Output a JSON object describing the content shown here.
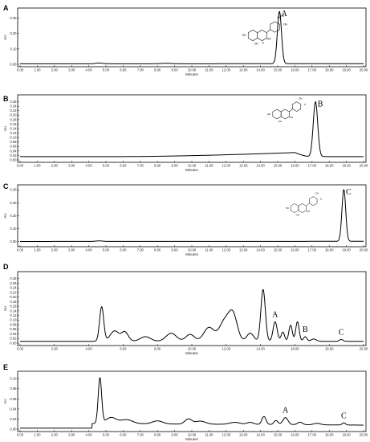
{
  "chart_data": [
    {
      "panel": "A",
      "type": "line",
      "xlabel": "Minutes",
      "ylabel": "AU",
      "xlim": [
        0,
        20
      ],
      "ylim": [
        0,
        0.35
      ],
      "x_ticks": [
        "0.00",
        "1.00",
        "2.00",
        "3.00",
        "4.00",
        "5.00",
        "6.00",
        "7.00",
        "8.00",
        "9.00",
        "10.00",
        "11.00",
        "12.00",
        "13.00",
        "14.00",
        "15.00",
        "16.00",
        "17.00",
        "18.00",
        "19.00",
        "20.00"
      ],
      "y_ticks": [
        "0.00",
        "0.10",
        "0.20",
        "0.30"
      ],
      "peaks": [
        {
          "label": "A",
          "rt": 15.1,
          "height": 0.34,
          "width": 0.12
        },
        {
          "label": "",
          "rt": 4.6,
          "height": 0.005,
          "width": 0.2
        },
        {
          "label": "",
          "rt": 8.5,
          "height": 0.003,
          "width": 0.3
        }
      ],
      "baseline": [
        0.003,
        0.004
      ],
      "structure": {
        "substituents": [
          "OH",
          "HO",
          "OH",
          "OH",
          "OH",
          "OH",
          "O"
        ]
      }
    },
    {
      "panel": "B",
      "type": "line",
      "xlabel": "Minutes",
      "ylabel": "AU",
      "xlim": [
        0,
        20
      ],
      "ylim": [
        0,
        0.28
      ],
      "x_ticks": [
        "0.00",
        "1.00",
        "2.00",
        "3.00",
        "4.00",
        "5.00",
        "6.00",
        "7.00",
        "8.00",
        "9.00",
        "10.00",
        "11.00",
        "12.00",
        "13.00",
        "14.00",
        "15.00",
        "16.00",
        "17.00",
        "18.00",
        "19.00",
        "20.00"
      ],
      "y_ticks": [
        "0.00",
        "0.02",
        "0.04",
        "0.06",
        "0.08",
        "0.10",
        "0.12",
        "0.14",
        "0.16",
        "0.18",
        "0.20",
        "0.22",
        "0.24",
        "0.26"
      ],
      "peaks": [
        {
          "label": "B",
          "rt": 17.2,
          "height": 0.245,
          "width": 0.13
        }
      ],
      "baseline": [
        0.015,
        0.015
      ],
      "baseline_hump": {
        "start": 6,
        "peak": 16,
        "end": 16.9,
        "height": 0.018
      },
      "structure": {
        "substituents": [
          "OH",
          "HO",
          "OH",
          "OH",
          "O"
        ]
      }
    },
    {
      "panel": "C",
      "type": "line",
      "xlabel": "Minutes",
      "ylabel": "AU",
      "xlim": [
        0,
        20
      ],
      "ylim": [
        -0.02,
        0.42
      ],
      "x_ticks": [
        "0.00",
        "1.00",
        "2.00",
        "3.00",
        "4.00",
        "5.00",
        "6.00",
        "7.00",
        "8.00",
        "9.00",
        "10.00",
        "11.00",
        "12.00",
        "13.00",
        "14.00",
        "15.00",
        "16.00",
        "17.00",
        "18.00",
        "19.00",
        "20.00"
      ],
      "y_ticks": [
        "0.00",
        "0.10",
        "0.20",
        "0.30",
        "0.40"
      ],
      "peaks": [
        {
          "label": "C",
          "rt": 18.85,
          "height": 0.4,
          "width": 0.11
        },
        {
          "label": "",
          "rt": 4.6,
          "height": 0.004,
          "width": 0.2
        }
      ],
      "baseline": [
        0.002,
        0.003
      ],
      "structure": {
        "substituents": [
          "OH",
          "HO",
          "OH",
          "OH",
          "O"
        ]
      }
    },
    {
      "panel": "D",
      "type": "line",
      "xlabel": "Minutes",
      "ylabel": "AU",
      "xlim": [
        0,
        20
      ],
      "ylim": [
        0,
        0.3
      ],
      "x_ticks": [
        "0.00",
        "2.00",
        "4.00",
        "6.00",
        "8.00",
        "10.00",
        "12.00",
        "14.00",
        "16.00",
        "18.00",
        "20.00"
      ],
      "y_ticks": [
        "0.00",
        "0.02",
        "0.04",
        "0.06",
        "0.08",
        "0.10",
        "0.12",
        "0.14",
        "0.16",
        "0.18",
        "0.20",
        "0.22",
        "0.24",
        "0.26",
        "0.28"
      ],
      "peaks": [
        {
          "label": "",
          "rt": 4.75,
          "height": 0.15,
          "width": 0.12
        },
        {
          "label": "",
          "rt": 5.5,
          "height": 0.045,
          "width": 0.25
        },
        {
          "label": "",
          "rt": 6.1,
          "height": 0.04,
          "width": 0.2
        },
        {
          "label": "",
          "rt": 7.3,
          "height": 0.02,
          "width": 0.3
        },
        {
          "label": "",
          "rt": 8.8,
          "height": 0.035,
          "width": 0.3
        },
        {
          "label": "",
          "rt": 9.9,
          "height": 0.03,
          "width": 0.25
        },
        {
          "label": "",
          "rt": 11.0,
          "height": 0.06,
          "width": 0.3
        },
        {
          "label": "",
          "rt": 11.9,
          "height": 0.085,
          "width": 0.3
        },
        {
          "label": "",
          "rt": 12.4,
          "height": 0.11,
          "width": 0.25
        },
        {
          "label": "",
          "rt": 13.4,
          "height": 0.035,
          "width": 0.2
        },
        {
          "label": "",
          "rt": 14.15,
          "height": 0.225,
          "width": 0.13
        },
        {
          "label": "A",
          "rt": 14.85,
          "height": 0.085,
          "width": 0.12
        },
        {
          "label": "",
          "rt": 15.3,
          "height": 0.04,
          "width": 0.1
        },
        {
          "label": "",
          "rt": 15.75,
          "height": 0.07,
          "width": 0.1
        },
        {
          "label": "",
          "rt": 16.15,
          "height": 0.085,
          "width": 0.1
        },
        {
          "label": "B",
          "rt": 16.6,
          "height": 0.02,
          "width": 0.1
        },
        {
          "label": "",
          "rt": 17.1,
          "height": 0.01,
          "width": 0.15
        },
        {
          "label": "C",
          "rt": 18.7,
          "height": 0.008,
          "width": 0.1
        }
      ],
      "baseline": [
        0.008,
        0.008
      ],
      "pre_offset": {
        "start": 0,
        "end": 4.4,
        "level": 0.008
      }
    },
    {
      "panel": "E",
      "type": "line",
      "xlabel": "Minutes",
      "ylabel": "AU",
      "xlim": [
        0,
        20
      ],
      "ylim": [
        0,
        0.11
      ],
      "x_ticks": [
        "0.00",
        "1.00",
        "2.00",
        "3.00",
        "4.00",
        "5.00",
        "6.00",
        "7.00",
        "8.00",
        "9.00",
        "10.00",
        "11.00",
        "12.00",
        "13.00",
        "14.00",
        "15.00",
        "16.00",
        "17.00",
        "18.00",
        "19.00",
        "20.00"
      ],
      "y_ticks": [
        "0.00",
        "0.02",
        "0.04",
        "0.06",
        "0.08",
        "0.10"
      ],
      "peaks": [
        {
          "label": "",
          "rt": 4.65,
          "height": 0.09,
          "width": 0.1
        },
        {
          "label": "",
          "rt": 5.3,
          "height": 0.012,
          "width": 0.3
        },
        {
          "label": "",
          "rt": 6.2,
          "height": 0.008,
          "width": 0.35
        },
        {
          "label": "",
          "rt": 8.0,
          "height": 0.006,
          "width": 0.3
        },
        {
          "label": "",
          "rt": 9.8,
          "height": 0.01,
          "width": 0.2
        },
        {
          "label": "",
          "rt": 10.5,
          "height": 0.006,
          "width": 0.3
        },
        {
          "label": "",
          "rt": 12.5,
          "height": 0.004,
          "width": 0.3
        },
        {
          "label": "",
          "rt": 13.4,
          "height": 0.004,
          "width": 0.2
        },
        {
          "label": "",
          "rt": 14.2,
          "height": 0.016,
          "width": 0.12
        },
        {
          "label": "",
          "rt": 14.9,
          "height": 0.008,
          "width": 0.12
        },
        {
          "label": "A",
          "rt": 15.45,
          "height": 0.014,
          "width": 0.15
        },
        {
          "label": "",
          "rt": 16.3,
          "height": 0.005,
          "width": 0.15
        },
        {
          "label": "",
          "rt": 17.3,
          "height": 0.003,
          "width": 0.2
        },
        {
          "label": "C",
          "rt": 18.85,
          "height": 0.004,
          "width": 0.1
        }
      ],
      "baseline": [
        0.012,
        0.008
      ],
      "pre_offset": {
        "start": 0,
        "end": 4.2,
        "level": 0.002
      }
    }
  ]
}
